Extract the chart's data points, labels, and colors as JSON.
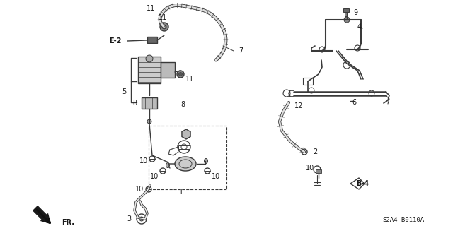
{
  "bg_color": "#ffffff",
  "part_number": "S2A4-B0110A",
  "line_color": "#3a3a3a",
  "line_width": 1.0,
  "fig_width": 6.4,
  "fig_height": 3.2,
  "dpi": 100
}
